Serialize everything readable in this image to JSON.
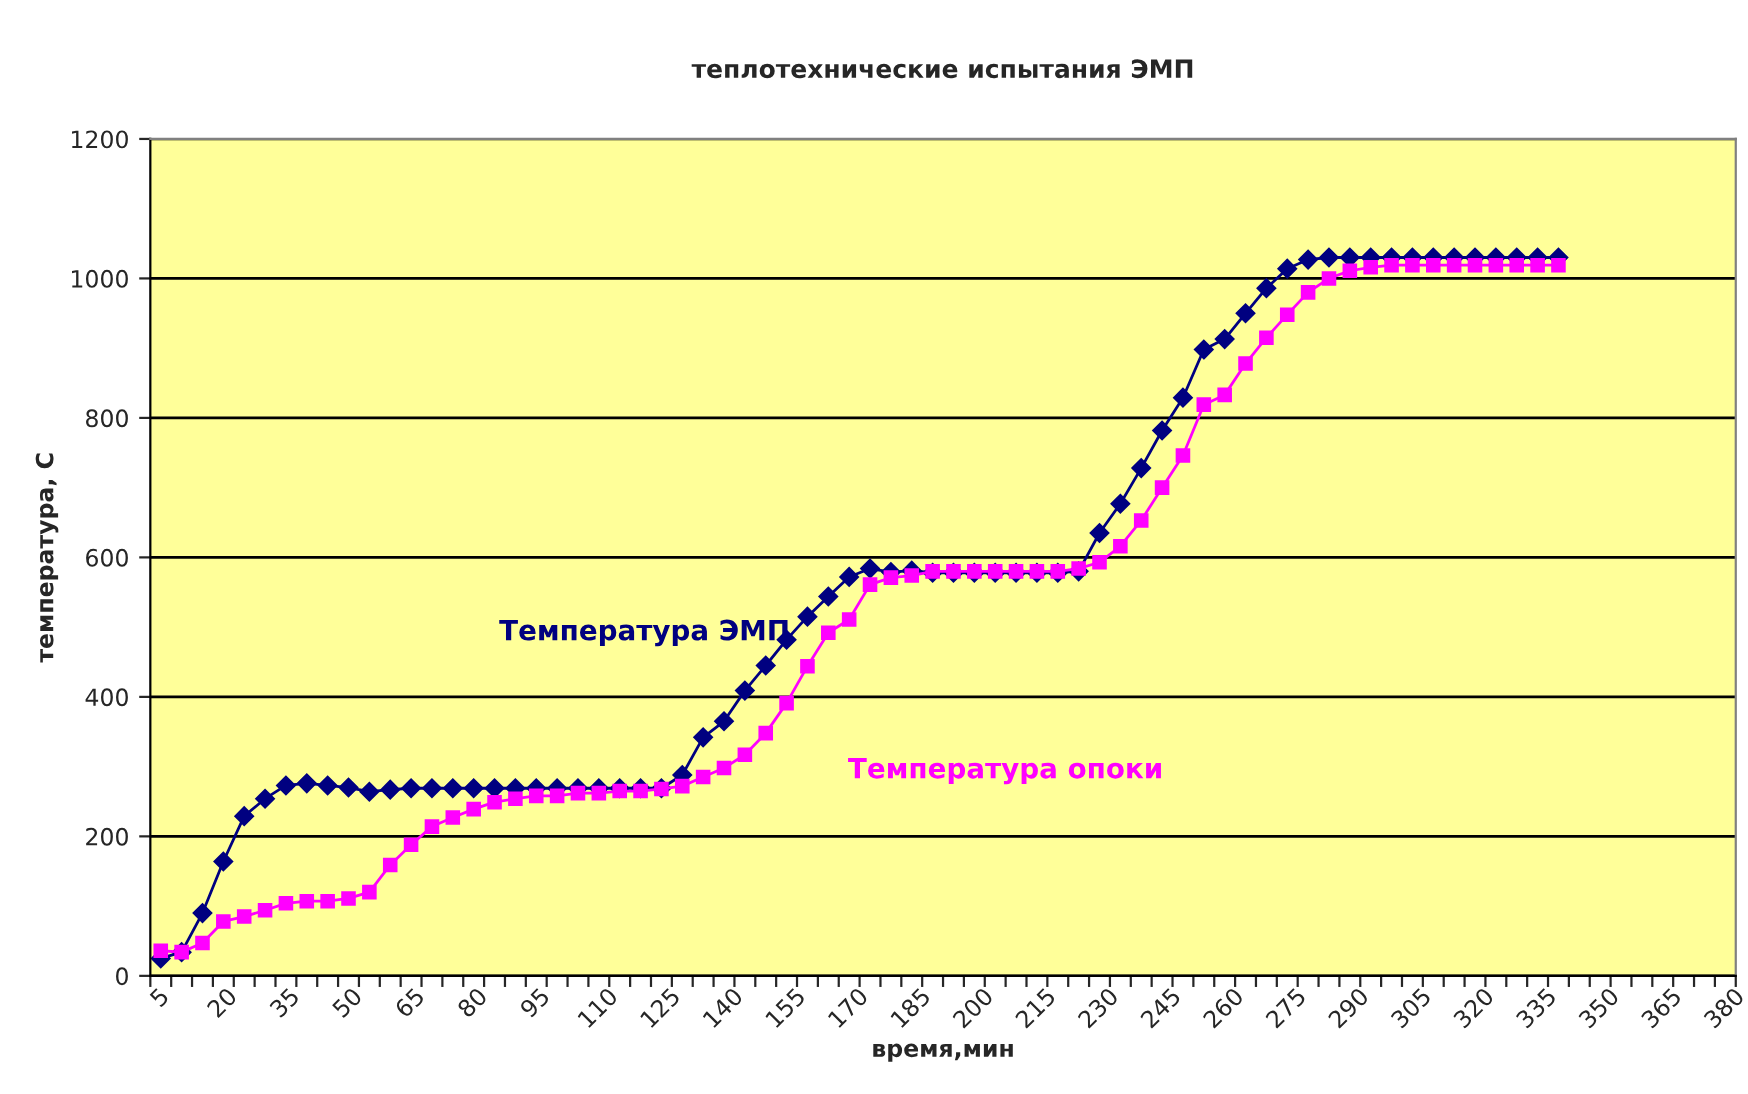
{
  "chart_data": {
    "type": "line",
    "title": "теплотехнические испытания ЭМП",
    "xlabel": "время,мин",
    "ylabel": "температура, С",
    "categories": [
      "5",
      null,
      null,
      "20",
      null,
      null,
      "35",
      null,
      null,
      "50",
      null,
      null,
      "65",
      null,
      null,
      "80",
      null,
      null,
      "95",
      null,
      null,
      "110",
      null,
      null,
      "125",
      null,
      null,
      "140",
      null,
      null,
      "155",
      null,
      null,
      "170",
      null,
      null,
      "185",
      null,
      null,
      "200",
      null,
      null,
      "215",
      null,
      null,
      "230",
      null,
      null,
      "245",
      null,
      null,
      "260",
      null,
      null,
      "275",
      null,
      null,
      "290",
      null,
      null,
      "305",
      null,
      null,
      "320",
      null,
      null,
      "335",
      null,
      null,
      "350",
      null,
      null,
      "365",
      null,
      null,
      "380"
    ],
    "series": [
      {
        "name": "Температура ЭМП",
        "color": "#000080",
        "marker": "diamond",
        "values": [
          25,
          34,
          90,
          164,
          229,
          254,
          273,
          276,
          273,
          270,
          264,
          267,
          269,
          269,
          269,
          269,
          269,
          269,
          269,
          269,
          269,
          269,
          269,
          269,
          269,
          288,
          342,
          365,
          409,
          445,
          482,
          515,
          544,
          572,
          584,
          579,
          581,
          578,
          578,
          578,
          578,
          578,
          578,
          578,
          580,
          635,
          677,
          728,
          782,
          829,
          898,
          913,
          950,
          986,
          1014,
          1027,
          1030,
          1030,
          1030,
          1030,
          1030,
          1030,
          1030,
          1030,
          1030,
          1030,
          1030,
          1030,
          null,
          null,
          null,
          null,
          null,
          null,
          null,
          null
        ]
      },
      {
        "name": "Температура опоки",
        "color": "#ff00ff",
        "marker": "square",
        "values": [
          36,
          34,
          47,
          78,
          85,
          94,
          104,
          107,
          107,
          111,
          120,
          159,
          188,
          214,
          227,
          239,
          249,
          254,
          258,
          258,
          262,
          262,
          265,
          265,
          268,
          272,
          285,
          298,
          317,
          348,
          391,
          444,
          492,
          511,
          561,
          571,
          574,
          580,
          580,
          580,
          580,
          580,
          580,
          580,
          584,
          593,
          616,
          653,
          700,
          746,
          819,
          833,
          878,
          915,
          948,
          980,
          1000,
          1011,
          1016,
          1019,
          1019,
          1019,
          1019,
          1019,
          1019,
          1019,
          1019,
          1019,
          null,
          null,
          null,
          null,
          null,
          null,
          null,
          null
        ]
      }
    ],
    "ylim": [
      0,
      1200
    ],
    "yticks": [
      0,
      200,
      400,
      600,
      800,
      1000,
      1200
    ],
    "grid": "y",
    "legend": false,
    "line_style": "solid"
  }
}
